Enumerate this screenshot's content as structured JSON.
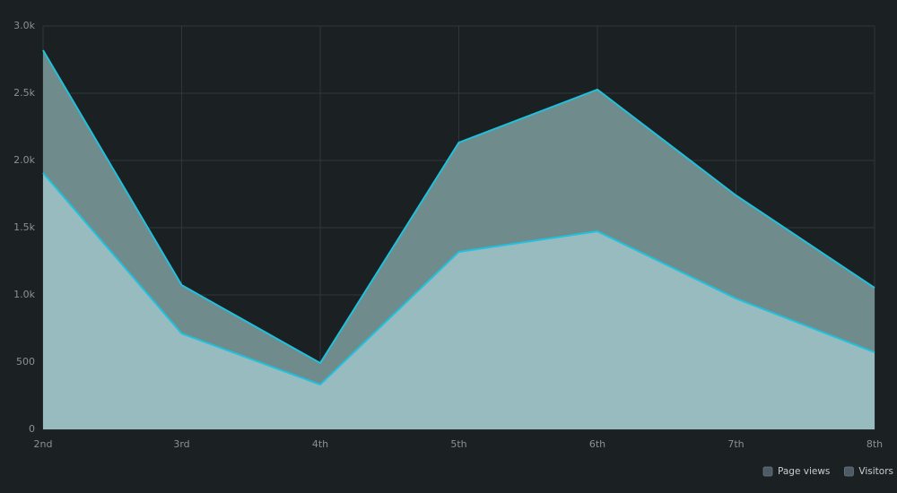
{
  "chart_data": {
    "type": "area",
    "categories": [
      "2nd",
      "3rd",
      "4th",
      "5th",
      "6th",
      "7th",
      "8th"
    ],
    "series": [
      {
        "name": "Page views",
        "color": "#1fc1dd",
        "fill": "#6f8b8c",
        "values": [
          2820,
          1073,
          493,
          2133,
          2527,
          1740,
          1053
        ]
      },
      {
        "name": "Visitors",
        "color": "#1fc1dd",
        "fill": "#97bbbf",
        "values": [
          1907,
          713,
          333,
          1320,
          1473,
          973,
          573
        ]
      }
    ],
    "ylim": [
      0,
      3000
    ],
    "yticks": [
      0,
      500,
      {
        "value": 1000,
        "label": "1.0k"
      },
      {
        "value": 1500,
        "label": "1.5k"
      },
      {
        "value": 2000,
        "label": "2.0k"
      },
      {
        "value": 2500,
        "label": "2.5k"
      },
      {
        "value": 3000,
        "label": "3.0k"
      }
    ],
    "grid": true,
    "legend": "bottom-right"
  }
}
